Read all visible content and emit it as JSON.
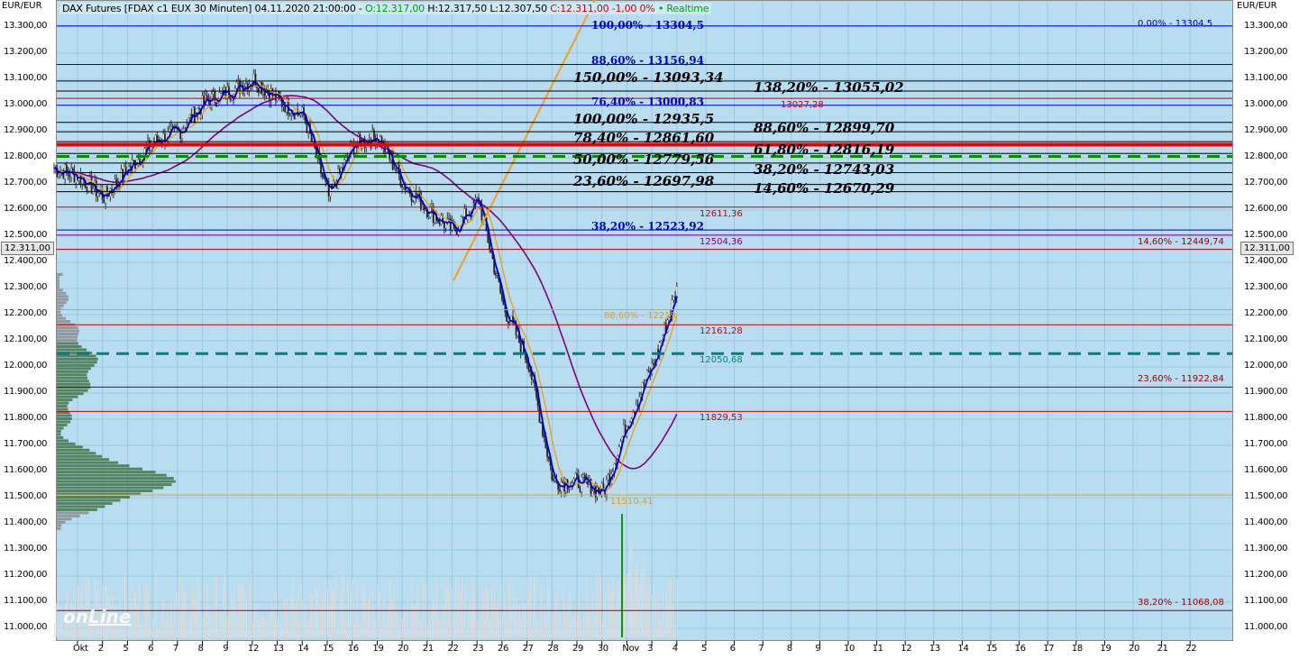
{
  "header": {
    "instrument": "DAX Futures [FDAX c1 EUX 30 Minuten] 04.11.2020 21:00:00 - ",
    "open": "O:12.317,00",
    "hl": " H:12.317,50 L:12.307,50 ",
    "close": "C:12.311,00 -1,00 0%",
    "realtime": " • Realtime"
  },
  "currency": "EUR/EUR",
  "last_price": "12.311,00",
  "logo": "online",
  "colors": {
    "bg": "#b8dcf0",
    "up": "#008000",
    "down": "#cc0000",
    "ma_fast": "#0000cc",
    "ma_mid": "#f0a020",
    "ma_slow": "#800080"
  },
  "chart_data": {
    "type": "candlestick",
    "y_ticks": [
      "13.300,00",
      "13.200,00",
      "13.100,00",
      "13.000,00",
      "12.900,00",
      "12.800,00",
      "12.700,00",
      "12.600,00",
      "12.500,00",
      "12.400,00",
      "12.300,00",
      "12.200,00",
      "12.100,00",
      "12.000,00",
      "11.900,00",
      "11.800,00",
      "11.700,00",
      "11.600,00",
      "11.500,00",
      "11.400,00",
      "11.300,00",
      "11.200,00",
      "11.100,00",
      "11.000,00"
    ],
    "ylim": [
      10960,
      13430
    ],
    "x_labels": [
      "Okt",
      "2",
      "5",
      "6",
      "7",
      "8",
      "9",
      "12",
      "13",
      "14",
      "15",
      "16",
      "19",
      "20",
      "21",
      "22",
      "23",
      "26",
      "27",
      "28",
      "29",
      "30",
      "Nov",
      "3",
      "4",
      "5",
      "6",
      "7",
      "8",
      "9",
      "10",
      "11",
      "12",
      "13",
      "14",
      "15",
      "16",
      "17",
      "18",
      "19",
      "20",
      "21",
      "22"
    ],
    "daily_close": [
      12730,
      12650,
      12760,
      12860,
      12900,
      13010,
      13050,
      13100,
      13020,
      12960,
      12650,
      12850,
      12880,
      12700,
      12600,
      12520,
      12640,
      12230,
      12020,
      11560,
      11560,
      11520,
      11800,
      12010,
      12311
    ],
    "levels": [
      {
        "value": 13304.5,
        "color": "#0000cc",
        "center": "100,00% - 13304,5",
        "right": "0,00% - 13304,5",
        "style": "mid"
      },
      {
        "value": 13156.94,
        "color": "#0000cc",
        "center": "88,60% - 13156,94",
        "style": "mid"
      },
      {
        "value": 13093.34,
        "color": "#000",
        "center": "150,00% - 13093,34",
        "style": "big"
      },
      {
        "value": 13055.02,
        "color": "#000",
        "center": "138,20% - 13055,02",
        "style": "big"
      },
      {
        "value": 13027.28,
        "color": "#cc0000",
        "small": "13027,28"
      },
      {
        "value": 13000.83,
        "color": "#0000cc",
        "center": "76,40% - 13000,83",
        "style": "mid"
      },
      {
        "value": 12935.5,
        "color": "#000",
        "center": "100,00% - 12935,5",
        "style": "big"
      },
      {
        "value": 12899.7,
        "color": "#000",
        "center": "88,60% - 12899,70",
        "style": "big"
      },
      {
        "value": 12850,
        "color": "#ee0000",
        "thick": true
      },
      {
        "value": 12861.6,
        "color": "#000",
        "center": "78,40% - 12861,60",
        "style": "big"
      },
      {
        "value": 12805,
        "color": "#009000",
        "dashed": true
      },
      {
        "value": 12816.19,
        "color": "#000",
        "center": "61,80% - 12816,19",
        "style": "big"
      },
      {
        "value": 12779.56,
        "color": "#000",
        "center": "50,00% - 12779,56",
        "style": "big"
      },
      {
        "value": 12743.03,
        "color": "#000",
        "center": "38,20% - 12743,03",
        "style": "big"
      },
      {
        "value": 12697.98,
        "color": "#000",
        "center": "23,60% - 12697,98",
        "style": "big"
      },
      {
        "value": 12670.29,
        "color": "#000",
        "center": "14,60% - 12670,29",
        "style": "big"
      },
      {
        "value": 12611.36,
        "color": "#cc0000",
        "small": "12611,36"
      },
      {
        "value": 12523.92,
        "color": "#0000cc",
        "center": "38,20% - 12523,92",
        "style": "mid"
      },
      {
        "value": 12504.36,
        "color": "#800080",
        "small": "12504,36"
      },
      {
        "value": 12449.74,
        "color": "#990000",
        "right": "14,60% - 12449,74"
      },
      {
        "value": 12219,
        "color": "#e0a030",
        "small": "88,60% - 12219"
      },
      {
        "value": 12161.28,
        "color": "#cc0000",
        "small": "12161,28"
      },
      {
        "value": 12050.68,
        "color": "#008080",
        "small": "12050,68",
        "dashed": true
      },
      {
        "value": 11922.84,
        "color": "#990000",
        "right": "23,60% - 11922,84"
      },
      {
        "value": 11829.53,
        "color": "#cc0000",
        "small": "11829,53"
      },
      {
        "value": 11510.41,
        "color": "#e0a030",
        "small": "- 11510,41"
      },
      {
        "value": 11068.08,
        "color": "#990000",
        "right": "38,20% - 11068,08"
      }
    ]
  }
}
